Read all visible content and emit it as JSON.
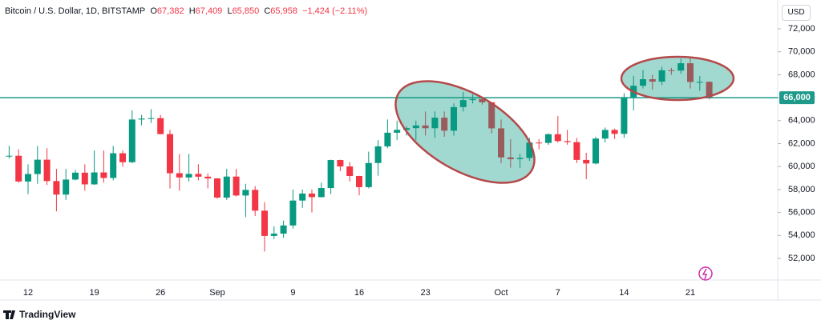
{
  "header": {
    "symbol": "Bitcoin / U.S. Dollar, 1D, BITSTAMP",
    "o_label": "O",
    "o": "67,382",
    "h_label": "H",
    "h": "67,409",
    "l_label": "L",
    "l": "65,850",
    "c_label": "C",
    "c": "65,958",
    "change": "−1,424 (−2.11%)",
    "currency": "USD"
  },
  "footer": {
    "brand": "TradingView"
  },
  "chart_data": {
    "type": "candlestick",
    "up_color": "#089981",
    "down_color": "#f23645",
    "categories": [
      null,
      null,
      "12",
      null,
      null,
      null,
      null,
      null,
      null,
      "19",
      null,
      null,
      null,
      null,
      null,
      null,
      "26",
      null,
      null,
      null,
      null,
      null,
      "Sep",
      null,
      null,
      null,
      null,
      null,
      null,
      null,
      "9",
      null,
      null,
      null,
      null,
      null,
      null,
      "16",
      null,
      null,
      null,
      null,
      null,
      null,
      "23",
      null,
      null,
      null,
      null,
      null,
      null,
      null,
      "Oct",
      null,
      null,
      null,
      null,
      null,
      "7",
      null,
      null,
      null,
      null,
      null,
      null,
      "14",
      null,
      null,
      null,
      null,
      null,
      null,
      "21",
      null,
      null
    ],
    "open": [
      60900,
      60940,
      58700,
      59350,
      60600,
      58740,
      57560,
      58870,
      59470,
      58450,
      59490,
      59010,
      61160,
      60380,
      64100,
      64180,
      64220,
      62830,
      59420,
      59050,
      59360,
      59120,
      58970,
      57300,
      59130,
      57480,
      57970,
      56160,
      53960,
      54160,
      54870,
      57040,
      57650,
      57340,
      58130,
      60570,
      60010,
      59180,
      58210,
      60310,
      61760,
      62950,
      63200,
      63350,
      63580,
      63340,
      64260,
      63130,
      65180,
      65790,
      65880,
      65600,
      63330,
      60800,
      60650,
      60750,
      62090,
      62060,
      62820,
      62220,
      62130,
      60580,
      60270,
      62440,
      63190,
      62850,
      66050,
      67040,
      67610,
      67400,
      68390,
      68360,
      69000,
      67370,
      67382
    ],
    "high": [
      61800,
      61500,
      60200,
      61800,
      61600,
      59800,
      59800,
      59700,
      60200,
      61400,
      61400,
      61800,
      61400,
      64900,
      64500,
      65000,
      64500,
      63200,
      61100,
      61100,
      60200,
      59400,
      59000,
      59800,
      59800,
      58500,
      58300,
      56900,
      54800,
      55300,
      58000,
      58000,
      58000,
      58600,
      60600,
      60600,
      60400,
      59200,
      61300,
      62300,
      64100,
      64000,
      63500,
      64000,
      64800,
      64800,
      64800,
      65500,
      66500,
      66300,
      66100,
      65600,
      64100,
      62400,
      61100,
      62500,
      62400,
      62900,
      64400,
      63200,
      62500,
      61200,
      62600,
      63400,
      63300,
      66400,
      67900,
      68400,
      68000,
      68700,
      68600,
      69400,
      69500,
      67900,
      67409
    ],
    "low": [
      60700,
      58600,
      57600,
      58500,
      58400,
      56100,
      57100,
      58800,
      57900,
      58400,
      58600,
      58800,
      60000,
      60300,
      63600,
      63800,
      62800,
      58100,
      57900,
      58700,
      58800,
      58100,
      57200,
      57100,
      57400,
      55600,
      55700,
      52600,
      53700,
      53800,
      54600,
      56400,
      56000,
      57300,
      57600,
      59600,
      58700,
      57500,
      58100,
      59200,
      61600,
      62300,
      62700,
      62300,
      62700,
      62500,
      62600,
      62700,
      64800,
      65500,
      65400,
      62900,
      60300,
      59900,
      59900,
      60500,
      61500,
      61900,
      62100,
      61900,
      60300,
      58900,
      60200,
      62100,
      62400,
      62500,
      64900,
      66800,
      66700,
      67100,
      68000,
      68100,
      66800,
      66600,
      65850
    ],
    "close": [
      60940,
      58700,
      59350,
      60600,
      58740,
      57560,
      58870,
      59470,
      58450,
      59490,
      59010,
      61160,
      60380,
      64100,
      64180,
      64220,
      62830,
      59420,
      59050,
      59360,
      59120,
      58970,
      57300,
      59130,
      57480,
      57970,
      56160,
      53960,
      54160,
      54870,
      57040,
      57650,
      57340,
      58130,
      60570,
      60010,
      59180,
      58210,
      60310,
      61760,
      62950,
      63200,
      63350,
      63580,
      63340,
      64260,
      63130,
      65180,
      65790,
      65880,
      65600,
      63330,
      60800,
      60650,
      60750,
      62090,
      62060,
      62820,
      62220,
      62130,
      60580,
      60270,
      62440,
      63190,
      62850,
      66050,
      67040,
      67610,
      67400,
      68390,
      68360,
      69000,
      67370,
      67382,
      65958
    ],
    "ylim": [
      50120,
      74510
    ],
    "yticks": [
      {
        "value": 52000,
        "label": "52,000"
      },
      {
        "value": 54000,
        "label": "54,000"
      },
      {
        "value": 56000,
        "label": "56,000"
      },
      {
        "value": 58000,
        "label": "58,000"
      },
      {
        "value": 60000,
        "label": "60,000"
      },
      {
        "value": 62000,
        "label": "62,000"
      },
      {
        "value": 64000,
        "label": "64,000"
      },
      {
        "value": 66000,
        "label": "66,000"
      },
      {
        "value": 68000,
        "label": "68,000"
      },
      {
        "value": 70000,
        "label": "70,000"
      },
      {
        "value": 72000,
        "label": "72,000"
      }
    ],
    "hline": {
      "value": 66000,
      "label": "66,000",
      "color": "#1f9a8a"
    }
  }
}
